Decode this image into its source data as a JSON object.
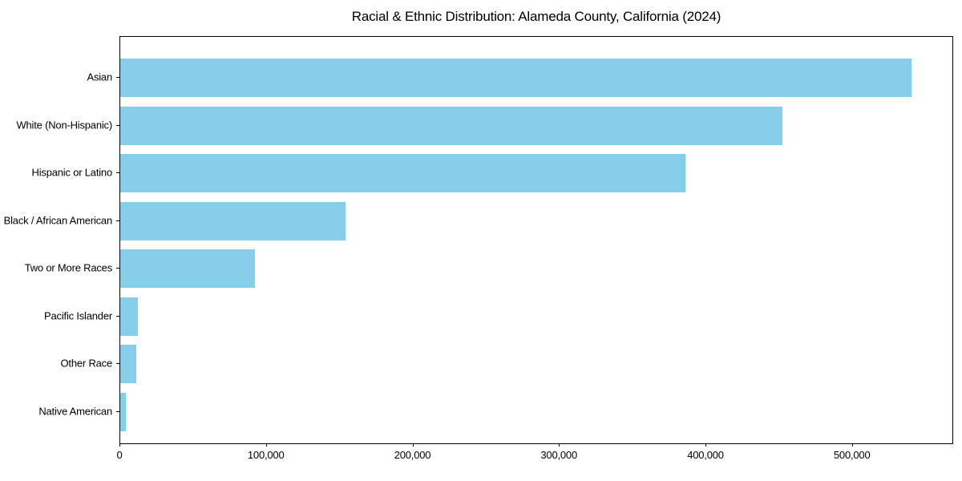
{
  "chart_data": {
    "type": "bar",
    "orientation": "horizontal",
    "title": "Racial & Ethnic Distribution: Alameda County, California (2024)",
    "categories": [
      "Asian",
      "White (Non-Hispanic)",
      "Hispanic or Latino",
      "Black / African American",
      "Two or More Races",
      "Pacific Islander",
      "Other Race",
      "Native American"
    ],
    "values": [
      540000,
      452000,
      386000,
      154000,
      92000,
      12000,
      11000,
      4000
    ],
    "xlabel": "",
    "ylabel": "",
    "xlim": [
      0,
      568000
    ],
    "xticks": [
      0,
      100000,
      200000,
      300000,
      400000,
      500000
    ],
    "xtick_labels": [
      "0",
      "100,000",
      "200,000",
      "300,000",
      "400,000",
      "500,000"
    ],
    "grid": false,
    "legend": null,
    "bar_color": "#87CEEB",
    "axis_color": "#000000",
    "background_color": "#FFFFFF"
  }
}
